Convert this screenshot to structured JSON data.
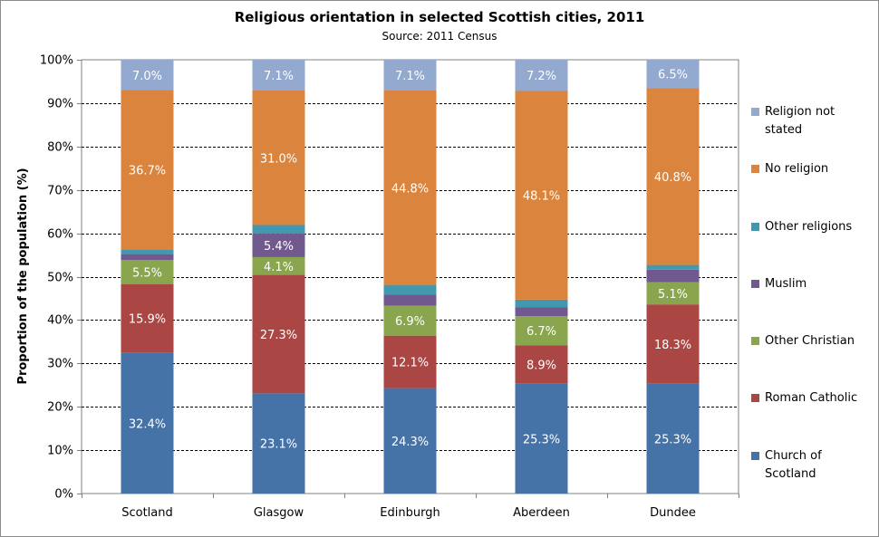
{
  "chart_data": {
    "type": "bar",
    "stacked": true,
    "percent": true,
    "title": "Religious orientation in selected Scottish cities, 2011",
    "subtitle": "Source:  2011 Census",
    "xlabel": "",
    "ylabel": "Proportion of the population (%)",
    "ylim": [
      0,
      100
    ],
    "yticks": [
      "0%",
      "10%",
      "20%",
      "30%",
      "40%",
      "50%",
      "60%",
      "70%",
      "80%",
      "90%",
      "100%"
    ],
    "grid": true,
    "legend_position": "right",
    "categories": [
      "Scotland",
      "Glasgow",
      "Edinburgh",
      "Aberdeen",
      "Dundee"
    ],
    "series": [
      {
        "name": "Church of Scotland",
        "color": "#4572a7",
        "values": [
          32.4,
          23.1,
          24.3,
          25.3,
          25.3
        ],
        "labels": [
          "32.4%",
          "23.1%",
          "24.3%",
          "25.3%",
          "25.3%"
        ]
      },
      {
        "name": "Roman Catholic",
        "color": "#aa4643",
        "values": [
          15.9,
          27.3,
          12.1,
          8.9,
          18.3
        ],
        "labels": [
          "15.9%",
          "27.3%",
          "12.1%",
          "8.9%",
          "18.3%"
        ]
      },
      {
        "name": "Other Christian",
        "color": "#89a54e",
        "values": [
          5.5,
          4.1,
          6.9,
          6.7,
          5.1
        ],
        "labels": [
          "5.5%",
          "4.1%",
          "6.9%",
          "6.7%",
          "5.1%"
        ]
      },
      {
        "name": "Muslim",
        "color": "#71588f",
        "values": [
          1.4,
          5.4,
          2.6,
          2.0,
          2.9
        ],
        "labels": [
          "",
          "5.4%",
          "",
          "",
          ""
        ]
      },
      {
        "name": "Other religions",
        "color": "#4198af",
        "values": [
          1.1,
          2.0,
          2.2,
          1.8,
          1.1
        ],
        "labels": [
          "",
          "",
          "",
          "",
          ""
        ]
      },
      {
        "name": "No religion",
        "color": "#db843d",
        "values": [
          36.7,
          31.0,
          44.8,
          48.1,
          40.8
        ],
        "labels": [
          "36.7%",
          "31.0%",
          "44.8%",
          "48.1%",
          "40.8%"
        ]
      },
      {
        "name": "Religion not stated",
        "color": "#93a9cf",
        "values": [
          7.0,
          7.1,
          7.1,
          7.2,
          6.5
        ],
        "labels": [
          "7.0%",
          "7.1%",
          "7.1%",
          "7.2%",
          "6.5%"
        ]
      }
    ],
    "legend": [
      {
        "label_lines": [
          "Religion not",
          "stated"
        ],
        "color": "#93a9cf"
      },
      {
        "label_lines": [
          "No religion"
        ],
        "color": "#db843d"
      },
      {
        "label_lines": [
          "Other religions"
        ],
        "color": "#4198af"
      },
      {
        "label_lines": [
          "Muslim"
        ],
        "color": "#71588f"
      },
      {
        "label_lines": [
          "Other Christian"
        ],
        "color": "#89a54e"
      },
      {
        "label_lines": [
          "Roman Catholic"
        ],
        "color": "#aa4643"
      },
      {
        "label_lines": [
          "Church of",
          "Scotland"
        ],
        "color": "#4572a7"
      }
    ]
  }
}
